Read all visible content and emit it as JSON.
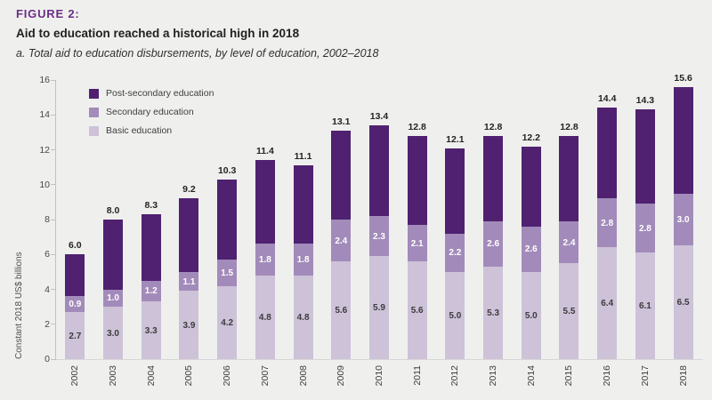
{
  "figure": {
    "label": "FIGURE 2:",
    "title": "Aid to education reached a historical high in 2018",
    "subtitle": "a. Total aid to education disbursements, by level of education, 2002–2018"
  },
  "colors": {
    "background": "#eff0ee",
    "figure_label": "#6c2d87",
    "axis_line": "#c2c2c2",
    "post_secondary": "#4f2170",
    "secondary": "#a28bba",
    "basic": "#cdc2d8"
  },
  "chart_data": {
    "type": "bar",
    "stacked": true,
    "title": "Aid to education reached a historical high in 2018",
    "xlabel": "",
    "ylabel": "Constant 2018 US$ billions",
    "ylim": [
      0,
      16
    ],
    "yticks": [
      0,
      2,
      4,
      6,
      8,
      10,
      12,
      14,
      16
    ],
    "grid": false,
    "legend_position": "top-left",
    "legend_order_top_to_bottom": [
      "Post-secondary education",
      "Secondary education",
      "Basic education"
    ],
    "categories": [
      "2002",
      "2003",
      "2004",
      "2005",
      "2006",
      "2007",
      "2008",
      "2009",
      "2010",
      "2011",
      "2012",
      "2013",
      "2014",
      "2015",
      "2016",
      "2017",
      "2018"
    ],
    "series": [
      {
        "name": "Basic education",
        "color": "#cdc2d8",
        "label_text_color": "#3c3c3c",
        "show_value_labels": true,
        "values": [
          2.7,
          3.0,
          3.3,
          3.9,
          4.2,
          4.8,
          4.8,
          5.6,
          5.9,
          5.6,
          5.0,
          5.3,
          5.0,
          5.5,
          6.4,
          6.1,
          6.5
        ]
      },
      {
        "name": "Secondary education",
        "color": "#a28bba",
        "label_text_color": "#ffffff",
        "show_value_labels": true,
        "values": [
          0.9,
          1.0,
          1.2,
          1.1,
          1.5,
          1.8,
          1.8,
          2.4,
          2.3,
          2.1,
          2.2,
          2.6,
          2.6,
          2.4,
          2.8,
          2.8,
          3.0
        ]
      },
      {
        "name": "Post-secondary education",
        "color": "#4f2170",
        "label_text_color": "#ffffff",
        "show_value_labels": false,
        "values": [
          2.4,
          4.0,
          3.8,
          4.2,
          4.6,
          4.8,
          4.5,
          5.1,
          5.2,
          5.1,
          4.9,
          4.9,
          4.6,
          4.9,
          5.2,
          5.4,
          6.1
        ]
      }
    ],
    "totals_shown_above_bars": true,
    "totals": [
      6.0,
      8.0,
      8.3,
      9.2,
      10.3,
      11.4,
      11.1,
      13.1,
      13.4,
      12.8,
      12.1,
      12.8,
      12.2,
      12.8,
      14.4,
      14.3,
      15.6
    ]
  }
}
